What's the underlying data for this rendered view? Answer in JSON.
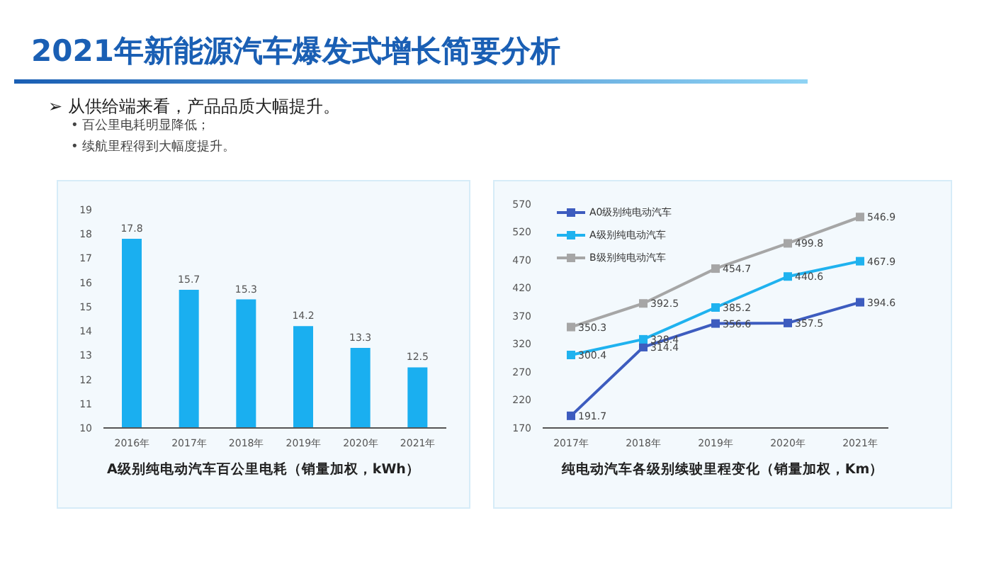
{
  "chart_data": [
    {
      "type": "bar",
      "title": "A级别纯电动汽车百公里电耗（销量加权，kWh）",
      "annotations": [
        "2021年新能源汽车爆发式增长简要分析",
        "➢ 从供给端来看，产品品质大幅提升。",
        "• 百公里电耗明显降低；",
        "• 续航里程得到大幅度提升。"
      ],
      "categories": [
        "2016年",
        "2017年",
        "2018年",
        "2019年",
        "2020年",
        "2021年"
      ],
      "values": [
        17.8,
        15.7,
        15.3,
        14.2,
        13.3,
        12.5
      ],
      "color": "#1aaff0",
      "ylim": [
        10,
        19
      ],
      "yticks": [
        10,
        11,
        12,
        13,
        14,
        15,
        16,
        17,
        18,
        19
      ],
      "grid": false,
      "data_labels": true
    },
    {
      "type": "line",
      "title": "纯电动汽车各级别续驶里程变化（销量加权，Km）",
      "categories": [
        "2017年",
        "2018年",
        "2019年",
        "2020年",
        "2021年"
      ],
      "series": [
        {
          "name": "A0级别纯电动汽车",
          "color": "#3d5cbf",
          "values": [
            191.7,
            314.4,
            356.6,
            357.5,
            394.6
          ]
        },
        {
          "name": "A级别纯电动汽车",
          "color": "#1fb2ef",
          "values": [
            300.4,
            328.4,
            385.2,
            440.6,
            467.9
          ]
        },
        {
          "name": "B级别纯电动汽车",
          "color": "#a6a6a6",
          "values": [
            350.3,
            392.5,
            454.7,
            499.8,
            546.9
          ]
        }
      ],
      "ylim": [
        170,
        570
      ],
      "yticks": [
        170,
        220,
        270,
        320,
        370,
        420,
        470,
        520,
        570
      ],
      "grid": false,
      "legend": "top left",
      "marker": "square",
      "line_style": "solid",
      "data_labels": true
    }
  ]
}
